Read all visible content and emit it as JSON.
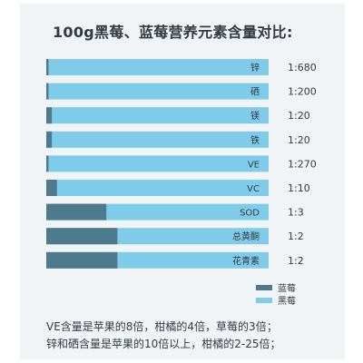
{
  "colors": {
    "blackberry": "#7fccea",
    "blueberry": "#4e7a8e",
    "card": "#f1f4f6"
  },
  "chart_data": {
    "type": "bar",
    "orientation": "horizontal",
    "stacked": true,
    "title": "100g黑莓、蓝莓营养元素含量对比:",
    "categories": [
      "锌",
      "硒",
      "镁",
      "铁",
      "VE",
      "VC",
      "SOD",
      "总黄酮",
      "花青素"
    ],
    "ratio_labels": [
      "1:680",
      "1:200",
      "1:20",
      "1:20",
      "1:270",
      "1:10",
      "1:3",
      "1:2",
      "1:2"
    ],
    "blueberry_fraction": [
      0.01,
      0.01,
      0.025,
      0.025,
      0.01,
      0.048,
      0.27,
      0.32,
      0.32
    ],
    "series": [
      {
        "name": "蓝莓"
      },
      {
        "name": "黑莓"
      }
    ],
    "legend_position": "bottom-right"
  },
  "notes": {
    "line1": "VE含量是苹果的8倍，柑橘的4倍，草莓的3倍；",
    "line2": "锌和硒含量是苹果的10倍以上，柑橘的2-25倍；"
  }
}
